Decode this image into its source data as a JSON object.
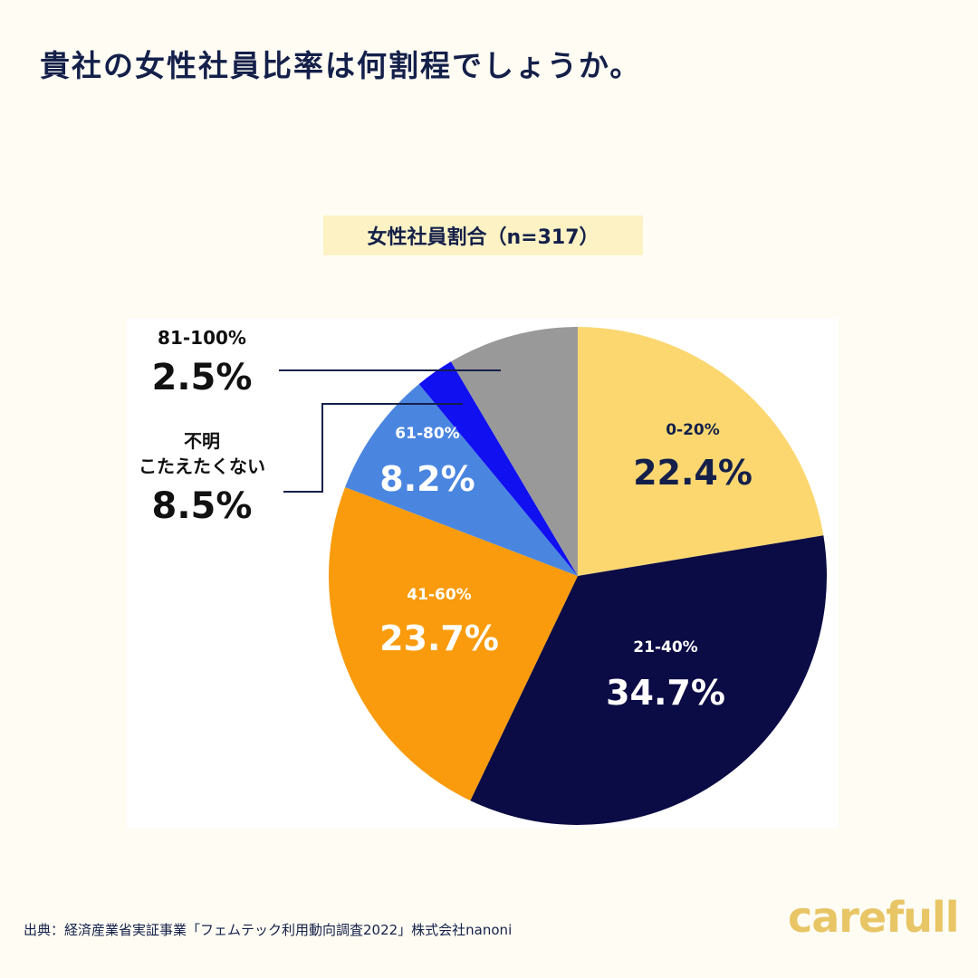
{
  "header": {
    "title": "貴社の女性社員比率は何割程でしょうか。"
  },
  "chart_data": {
    "type": "pie",
    "title": "女性社員割合（n=317）",
    "slices": [
      {
        "label": "0-20%",
        "value": 22.4,
        "display": "22.4%",
        "color": "#FCD770",
        "text_color": "#14204A"
      },
      {
        "label": "21-40%",
        "value": 34.7,
        "display": "34.7%",
        "color": "#0B0B45",
        "text_color": "#FFFFFF"
      },
      {
        "label": "41-60%",
        "value": 23.7,
        "display": "23.7%",
        "color": "#F99B0C",
        "text_color": "#FFFFFF"
      },
      {
        "label": "61-80%",
        "value": 8.2,
        "display": "8.2%",
        "color": "#4A86E0",
        "text_color": "#FFFFFF"
      },
      {
        "label": "81-100%",
        "value": 2.5,
        "display": "2.5%",
        "color": "#1010F0",
        "text_color": "#111111"
      },
      {
        "label": "不明\nこたえたくない",
        "value": 8.5,
        "display": "8.5%",
        "color": "#999999",
        "text_color": "#111111"
      }
    ],
    "start": "top",
    "direction": "clockwise"
  },
  "footer": {
    "source": "出典：経済産業省実証事業「フェムテック利用動向調査2022」株式会社nanoni",
    "logo": "carefull"
  }
}
